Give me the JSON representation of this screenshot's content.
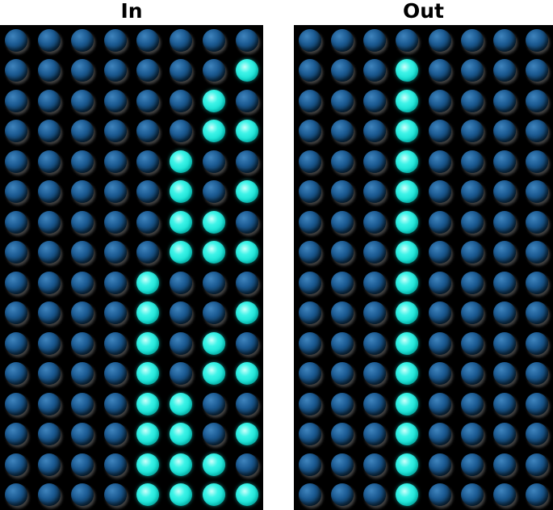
{
  "panels": [
    {
      "title": "In",
      "rows": 16,
      "cols": 8,
      "lit": [
        [],
        [
          7
        ],
        [
          6
        ],
        [
          6,
          7
        ],
        [
          5
        ],
        [
          5,
          7
        ],
        [
          5,
          6
        ],
        [
          5,
          6,
          7
        ],
        [
          4
        ],
        [
          4,
          7
        ],
        [
          4,
          6
        ],
        [
          4,
          6,
          7
        ],
        [
          4,
          5
        ],
        [
          4,
          5,
          7
        ],
        [
          4,
          5,
          6
        ],
        [
          4,
          5,
          6,
          7
        ]
      ]
    },
    {
      "title": "Out",
      "rows": 16,
      "cols": 8,
      "lit": [
        [],
        [
          3
        ],
        [
          3
        ],
        [
          3
        ],
        [
          3
        ],
        [
          3
        ],
        [
          3
        ],
        [
          3
        ],
        [
          3
        ],
        [
          3
        ],
        [
          3
        ],
        [
          3
        ],
        [
          3
        ],
        [
          3
        ],
        [
          3
        ],
        [
          3
        ]
      ]
    }
  ],
  "colors": {
    "led_on": "#2ff0e6",
    "led_off": "#1c5b93",
    "panel_background": "#000000"
  }
}
